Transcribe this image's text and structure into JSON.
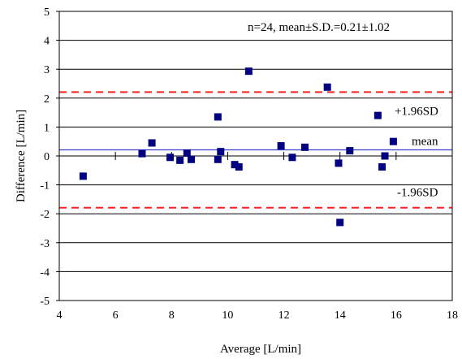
{
  "chart_data": {
    "type": "scatter",
    "title": "",
    "xlabel": "Average [L/min]",
    "ylabel": "Difference [L/min]",
    "xlim": [
      4,
      18
    ],
    "ylim": [
      -5,
      5
    ],
    "x_ticks": [
      4,
      6,
      8,
      10,
      12,
      14,
      16,
      18
    ],
    "x_tick_labels": [
      "4",
      "6",
      "8",
      "10",
      "12",
      "14",
      "16",
      "18"
    ],
    "y_ticks": [
      -5,
      -4,
      -3,
      -2,
      -1,
      0,
      1,
      2,
      3,
      4,
      5
    ],
    "y_tick_labels": [
      "-5",
      "-4",
      "-3",
      "-2",
      "-1",
      "0",
      "1",
      "2",
      "3",
      "4",
      "5"
    ],
    "grid": "horizontal",
    "stats_text": "n=24, mean±S.D.=0.21±1.02",
    "reference_lines": [
      {
        "label": "mean",
        "y": 0.21,
        "style": "solid",
        "color": "#3b3bd0"
      },
      {
        "label": "+1.96SD",
        "y": 2.21,
        "style": "dashed",
        "color": "#ff2020"
      },
      {
        "label": "-1.96SD",
        "y": -1.79,
        "style": "dashed",
        "color": "#ff2020"
      }
    ],
    "marker_color": "#000080",
    "points": [
      {
        "x": 4.85,
        "y": -0.7
      },
      {
        "x": 6.95,
        "y": 0.08
      },
      {
        "x": 7.3,
        "y": 0.45
      },
      {
        "x": 7.95,
        "y": -0.05
      },
      {
        "x": 8.3,
        "y": -0.15
      },
      {
        "x": 8.55,
        "y": 0.1
      },
      {
        "x": 8.7,
        "y": -0.12
      },
      {
        "x": 9.65,
        "y": 1.35
      },
      {
        "x": 9.65,
        "y": -0.12
      },
      {
        "x": 9.75,
        "y": 0.15
      },
      {
        "x": 10.25,
        "y": -0.3
      },
      {
        "x": 10.4,
        "y": -0.38
      },
      {
        "x": 10.75,
        "y": 2.93
      },
      {
        "x": 11.9,
        "y": 0.35
      },
      {
        "x": 12.3,
        "y": -0.05
      },
      {
        "x": 12.75,
        "y": 0.3
      },
      {
        "x": 13.55,
        "y": 2.38
      },
      {
        "x": 13.95,
        "y": -0.25
      },
      {
        "x": 14.0,
        "y": -2.3
      },
      {
        "x": 14.35,
        "y": 0.18
      },
      {
        "x": 15.35,
        "y": 1.4
      },
      {
        "x": 15.5,
        "y": -0.38
      },
      {
        "x": 15.6,
        "y": 0.0
      },
      {
        "x": 15.9,
        "y": 0.5
      }
    ]
  }
}
